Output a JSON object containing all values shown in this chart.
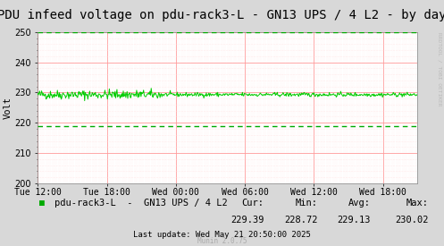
{
  "title": "PDU infeed voltage on pdu-rack3-L - GN13 UPS / 4 L2 - by day",
  "ylabel": "Volt",
  "background_color": "#d8d8d8",
  "plot_bg_color": "#ffffff",
  "grid_major_color": "#ff9999",
  "grid_minor_color": "#ffdddd",
  "ylim": [
    200,
    250
  ],
  "yticks": [
    200,
    210,
    220,
    230,
    240,
    250
  ],
  "x_labels": [
    "Tue 12:00",
    "Tue 18:00",
    "Wed 00:00",
    "Wed 06:00",
    "Wed 12:00",
    "Wed 18:00"
  ],
  "x_ticks_norm": [
    0.0,
    0.25,
    0.5,
    0.75,
    1.0,
    1.25
  ],
  "xlim": [
    0.0,
    1.375
  ],
  "line_color": "#00cc00",
  "line_value": 229.3,
  "line_noise_std": 0.35,
  "dashed_lower_value": 219.0,
  "dashed_upper_value": 250.0,
  "dashed_color": "#00aa00",
  "legend_label": "pdu-rack3-L  -  GN13 UPS / 4 L2",
  "legend_square_color": "#00aa00",
  "cur": "229.39",
  "min_val": "228.72",
  "avg": "229.13",
  "max_val": "230.02",
  "last_update": "Last update: Wed May 21 20:50:00 2025",
  "munin_version": "Munin 2.0.75",
  "watermark": "RRDTOOL / TOBI OETIKER",
  "title_fontsize": 10,
  "axis_label_fontsize": 7.5,
  "tick_fontsize": 7,
  "legend_fontsize": 7.5,
  "stats_fontsize": 7.5,
  "footer_fontsize": 6.5,
  "munin_fontsize": 5.5,
  "num_points": 600
}
